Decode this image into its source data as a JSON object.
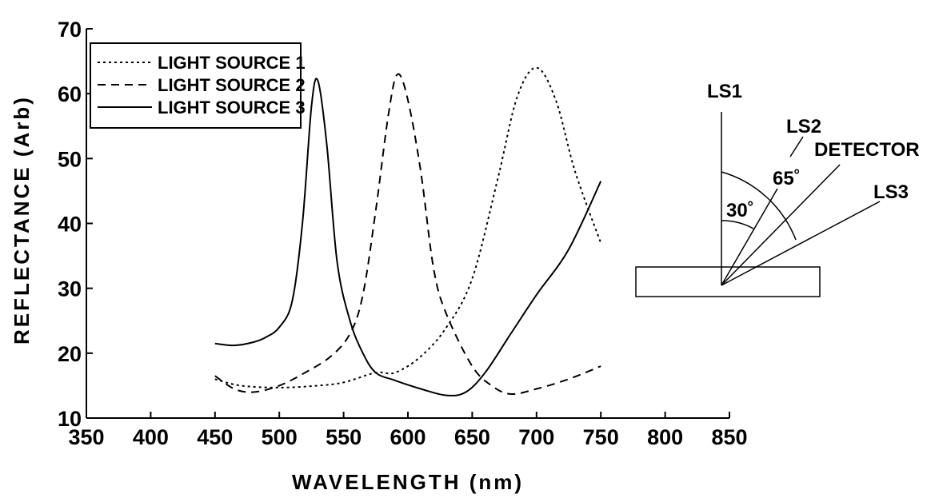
{
  "chart_data": {
    "type": "line",
    "title": "",
    "xlabel": "WAVELENGTH (nm)",
    "ylabel": "REFLECTANCE (Arb)",
    "xlim": [
      350,
      850
    ],
    "ylim": [
      10,
      70
    ],
    "xticks": [
      350,
      400,
      450,
      500,
      550,
      600,
      650,
      700,
      750,
      800,
      850
    ],
    "yticks": [
      10,
      20,
      30,
      40,
      50,
      60,
      70
    ],
    "grid": false,
    "legend_position": "top-left",
    "series": [
      {
        "name": "LIGHT SOURCE 1",
        "style": "dotted",
        "x": [
          450,
          470,
          500,
          530,
          550,
          575,
          590,
          610,
          630,
          650,
          670,
          685,
          700,
          715,
          730,
          750
        ],
        "y": [
          16,
          15,
          14.7,
          15,
          15.5,
          17,
          17,
          19.5,
          24,
          31.5,
          47,
          59.5,
          64,
          59,
          48,
          37
        ]
      },
      {
        "name": "LIGHT SOURCE 2",
        "style": "dashed",
        "x": [
          450,
          465,
          480,
          500,
          520,
          540,
          555,
          565,
          575,
          585,
          592,
          600,
          610,
          620,
          630,
          650,
          665,
          680,
          700,
          725,
          750
        ],
        "y": [
          16.5,
          14.5,
          14,
          15,
          17,
          19.5,
          23,
          29,
          42,
          57,
          63,
          59,
          48,
          33,
          26,
          18,
          15,
          13.7,
          14.5,
          16,
          18
        ]
      },
      {
        "name": "LIGHT SOURCE 3",
        "style": "solid",
        "x": [
          450,
          465,
          480,
          490,
          500,
          510,
          518,
          525,
          530,
          537,
          545,
          555,
          565,
          575,
          590,
          610,
          630,
          645,
          660,
          680,
          700,
          725,
          750
        ],
        "y": [
          21.5,
          21.2,
          21.7,
          22.5,
          24,
          28,
          40,
          58,
          62,
          52,
          34,
          25,
          20,
          17,
          15.8,
          14.5,
          13.5,
          14,
          17,
          23,
          29,
          36,
          46.5
        ]
      }
    ]
  },
  "diagram": {
    "labels": {
      "ls1": "LS1",
      "ls2": "LS2",
      "detector": "DETECTOR",
      "ls3": "LS3",
      "angle_small": "30˚",
      "angle_large": "65˚"
    },
    "angles_from_vertical_deg": {
      "ls1": 0,
      "ls2": 30,
      "detector": 45,
      "ls3": 65
    }
  }
}
